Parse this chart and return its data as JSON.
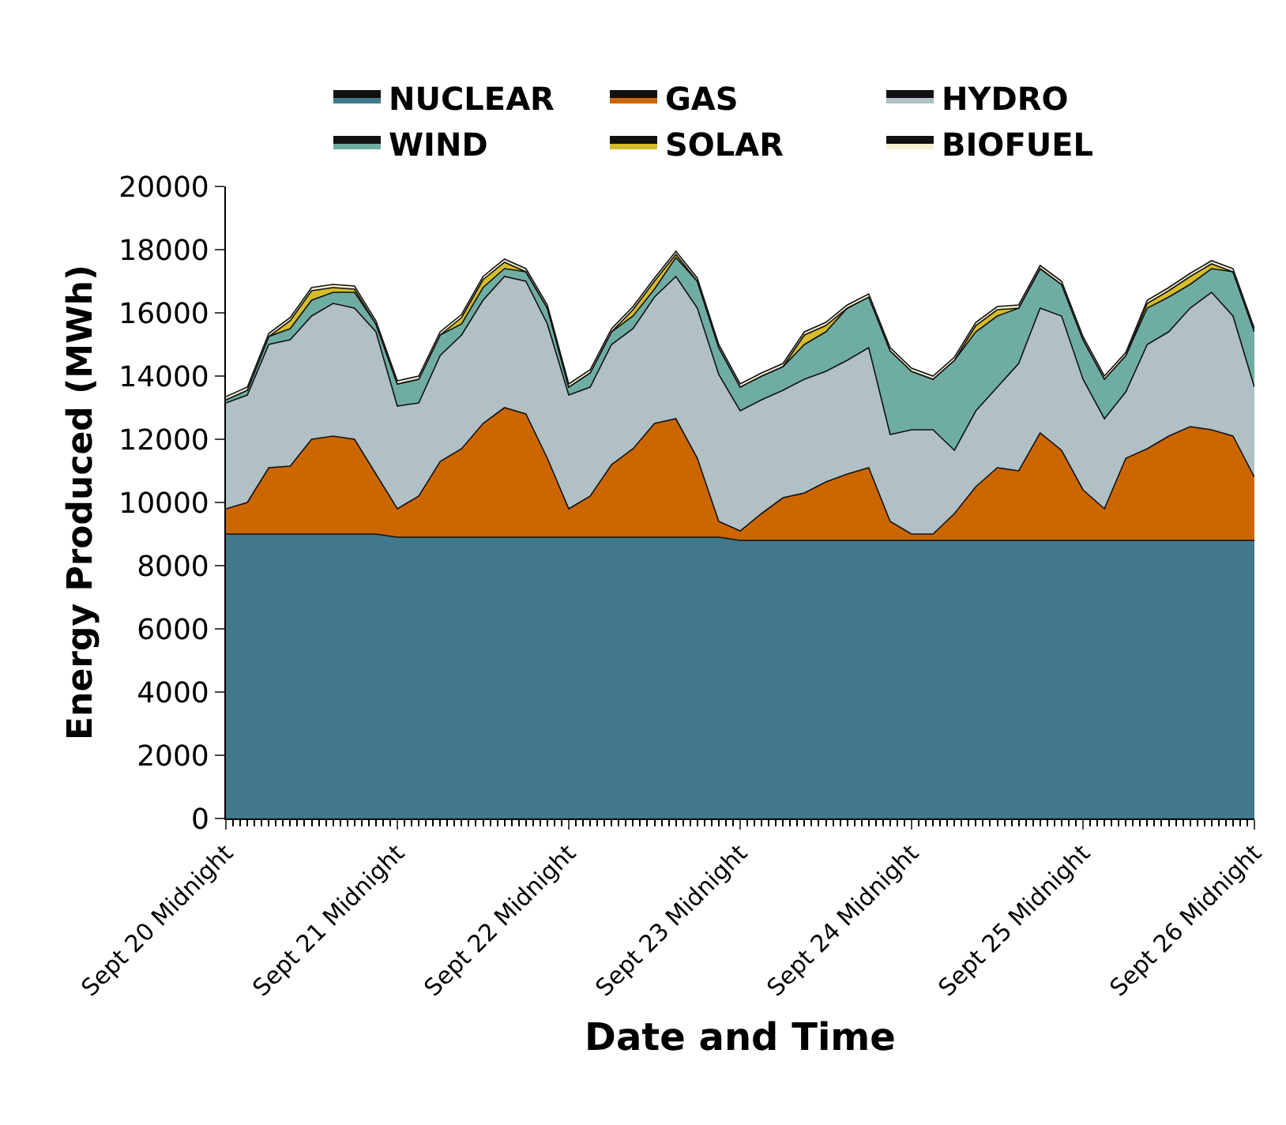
{
  "chart_data": {
    "type": "area",
    "stacked": true,
    "xlabel": "Date and Time",
    "ylabel": "Energy Produced (MWh)",
    "categories": [
      "Sept 20 Midnight",
      null,
      null,
      null,
      null,
      null,
      null,
      null,
      "Sept 21 Midnight",
      null,
      null,
      null,
      null,
      null,
      null,
      null,
      "Sept 22 Midnight",
      null,
      null,
      null,
      null,
      null,
      null,
      null,
      "Sept 23 Midnight",
      null,
      null,
      null,
      null,
      null,
      null,
      null,
      "Sept 24 Midnight",
      null,
      null,
      null,
      null,
      null,
      null,
      null,
      "Sept 25 Midnight",
      null,
      null,
      null,
      null,
      null,
      null,
      null,
      "Sept 26 Midnight"
    ],
    "ylim": [
      0,
      20000
    ],
    "yticks": [
      0,
      2000,
      4000,
      6000,
      8000,
      10000,
      12000,
      14000,
      16000,
      18000,
      20000
    ],
    "legend": "top",
    "series": [
      {
        "name": "NUCLEAR",
        "color": "#41788b",
        "values": [
          9000,
          9000,
          9000,
          9000,
          9000,
          9000,
          9000,
          9000,
          8900,
          8900,
          8900,
          8900,
          8900,
          8900,
          8900,
          8900,
          8900,
          8900,
          8900,
          8900,
          8900,
          8900,
          8900,
          8900,
          8800,
          8800,
          8800,
          8800,
          8800,
          8800,
          8800,
          8800,
          8800,
          8800,
          8800,
          8800,
          8800,
          8800,
          8800,
          8800,
          8800,
          8800,
          8800,
          8800,
          8800,
          8800,
          8800,
          8800,
          8800
        ]
      },
      {
        "name": "GAS",
        "color": "#cc6600",
        "values": [
          800,
          1000,
          2100,
          2150,
          3000,
          3100,
          3000,
          1900,
          900,
          1300,
          2400,
          2800,
          3600,
          4100,
          3900,
          2500,
          900,
          1300,
          2300,
          2800,
          3600,
          3750,
          2500,
          500,
          300,
          850,
          1350,
          1500,
          1850,
          2100,
          2300,
          600,
          200,
          200,
          850,
          1700,
          2300,
          2200,
          3400,
          2850,
          1600,
          1000,
          2600,
          2900,
          3300,
          3600,
          3500,
          3300,
          2000
        ]
      },
      {
        "name": "HYDRO",
        "color": "#b0c0c5",
        "values": [
          3350,
          3400,
          3900,
          4000,
          3900,
          4200,
          4150,
          4500,
          3250,
          2950,
          3350,
          3600,
          3900,
          4150,
          4200,
          4250,
          3600,
          3450,
          3800,
          3800,
          4000,
          4500,
          4750,
          4650,
          3800,
          3600,
          3400,
          3600,
          3500,
          3600,
          3800,
          2750,
          3300,
          3300,
          2000,
          2400,
          2550,
          3400,
          3950,
          4250,
          3500,
          2850,
          2100,
          3300,
          3300,
          3750,
          4350,
          3800,
          2850
        ]
      },
      {
        "name": "WIND",
        "color": "#6fada3",
        "values": [
          100,
          150,
          250,
          350,
          500,
          350,
          500,
          250,
          700,
          750,
          650,
          350,
          400,
          250,
          300,
          500,
          250,
          450,
          400,
          400,
          250,
          600,
          850,
          850,
          750,
          750,
          750,
          1100,
          1250,
          1650,
          1600,
          2650,
          1850,
          1600,
          2850,
          2500,
          2250,
          1750,
          1250,
          1000,
          1250,
          1250,
          1150,
          1150,
          1100,
          750,
          750,
          1400,
          1750
        ]
      },
      {
        "name": "SOLAR",
        "color": "#d6bd2a",
        "values": [
          0,
          0,
          0,
          250,
          300,
          150,
          100,
          0,
          0,
          0,
          0,
          200,
          250,
          200,
          0,
          0,
          0,
          0,
          0,
          200,
          250,
          100,
          0,
          0,
          0,
          0,
          0,
          300,
          200,
          0,
          0,
          0,
          0,
          0,
          0,
          200,
          200,
          0,
          0,
          0,
          0,
          0,
          0,
          150,
          200,
          250,
          150,
          0,
          0
        ]
      },
      {
        "name": "BIOFUEL",
        "color": "#f7f1d2",
        "values": [
          100,
          100,
          100,
          100,
          100,
          100,
          100,
          100,
          100,
          100,
          100,
          100,
          100,
          100,
          100,
          100,
          100,
          100,
          100,
          100,
          100,
          100,
          100,
          100,
          100,
          100,
          100,
          100,
          100,
          100,
          100,
          100,
          100,
          100,
          100,
          100,
          100,
          100,
          100,
          100,
          100,
          100,
          100,
          100,
          100,
          100,
          100,
          100,
          100
        ]
      }
    ]
  }
}
